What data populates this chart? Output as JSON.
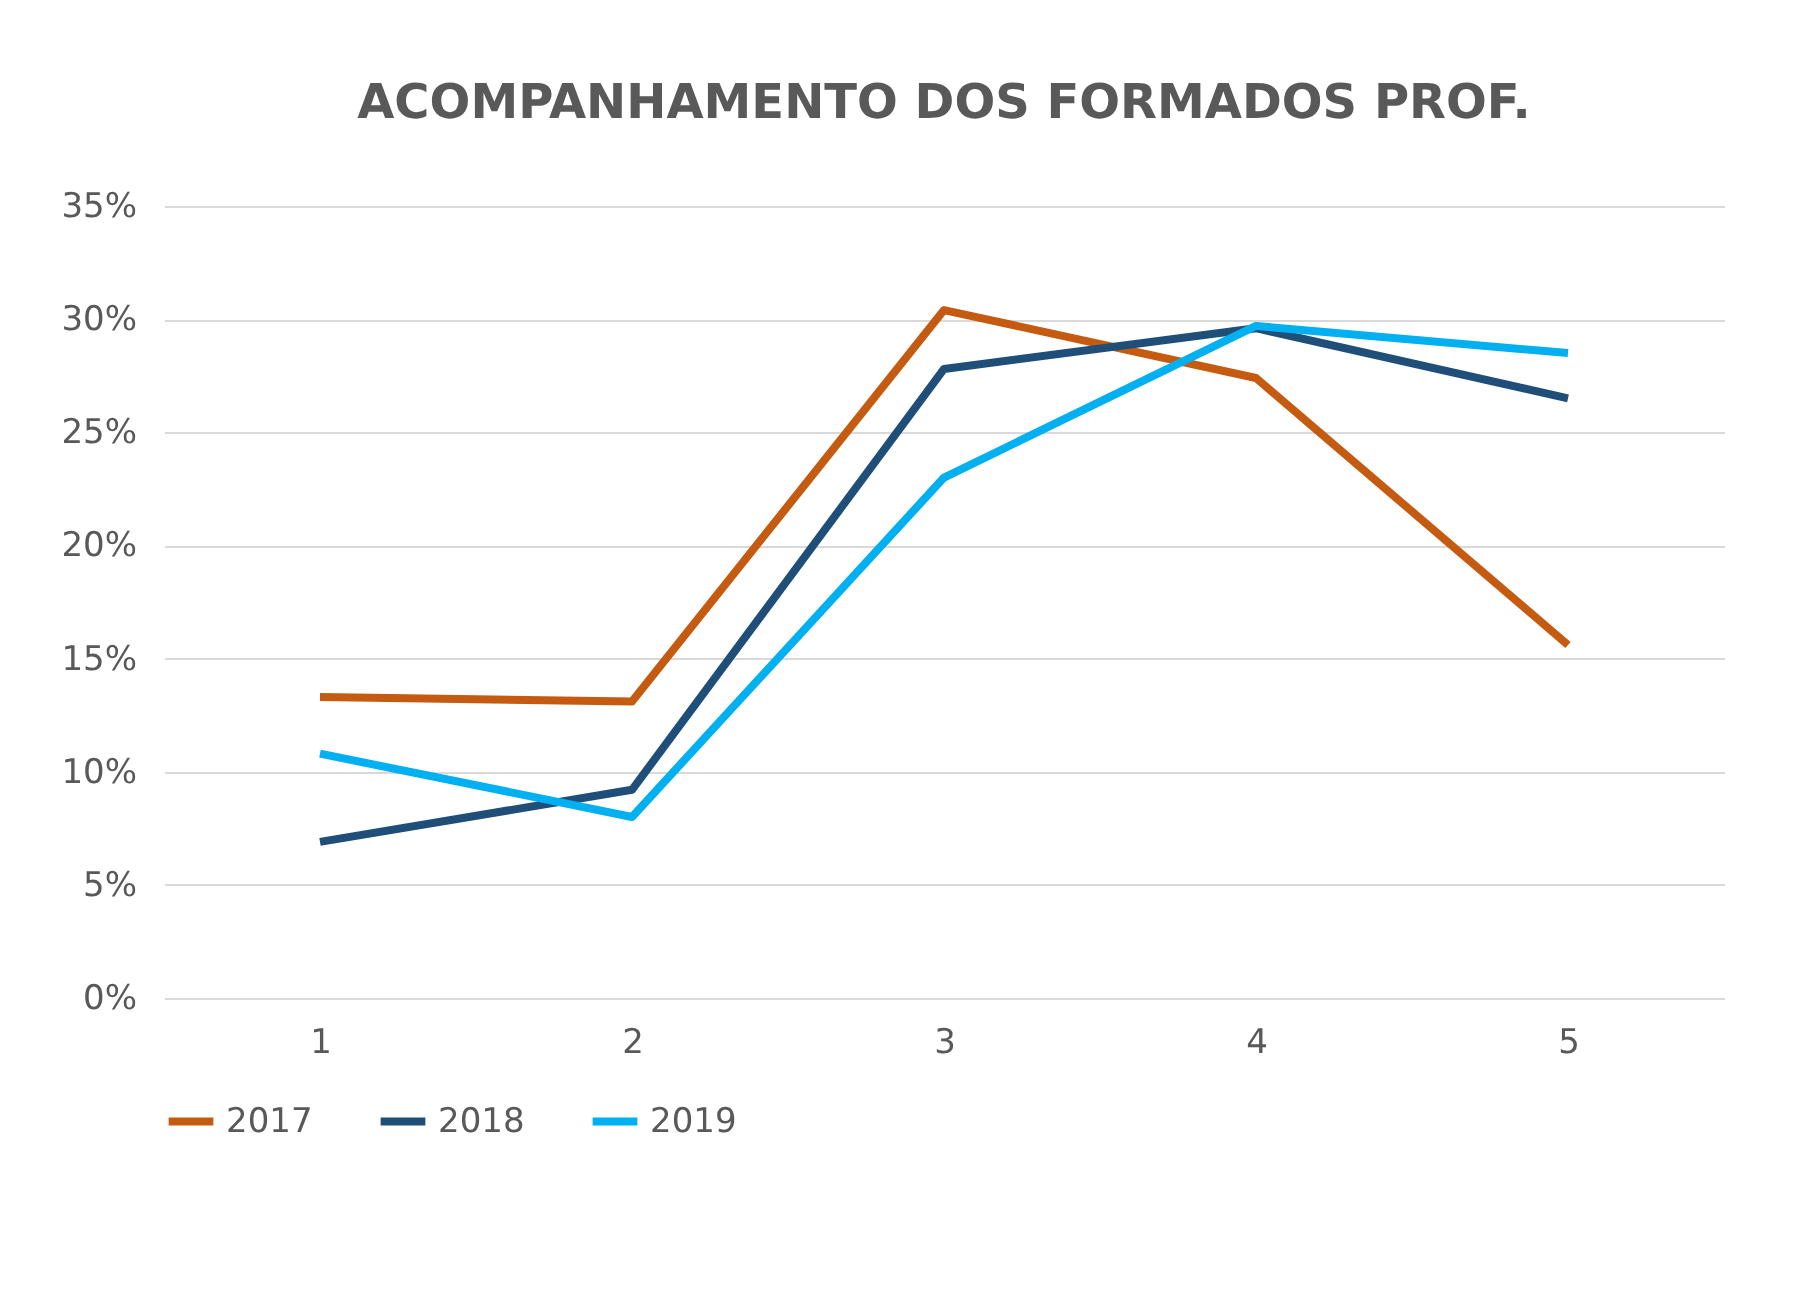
{
  "chart_data": {
    "type": "line",
    "title": "ACOMPANHAMENTO DOS FORMADOS PROF.",
    "categories": [
      "1",
      "2",
      "3",
      "4",
      "5"
    ],
    "series": [
      {
        "name": "2017",
        "color": "#c55a11",
        "values": [
          13.3,
          13.1,
          30.4,
          27.4,
          15.6
        ]
      },
      {
        "name": "2018",
        "color": "#1f4e79",
        "values": [
          6.9,
          9.2,
          27.8,
          29.6,
          26.5
        ]
      },
      {
        "name": "2019",
        "color": "#00b0f0",
        "values": [
          10.8,
          8.0,
          23.0,
          29.7,
          28.5
        ]
      }
    ],
    "ylim": [
      0,
      35
    ],
    "yticks": [
      {
        "value": 0,
        "label": "0%"
      },
      {
        "value": 5,
        "label": "5%"
      },
      {
        "value": 10,
        "label": "10%"
      },
      {
        "value": 15,
        "label": "15%"
      },
      {
        "value": 20,
        "label": "20%"
      },
      {
        "value": 25,
        "label": "25%"
      },
      {
        "value": 30,
        "label": "30%"
      },
      {
        "value": 35,
        "label": "35%"
      }
    ],
    "grid": "y",
    "legend": "bottom",
    "marker": "none",
    "line_style": "solid"
  }
}
